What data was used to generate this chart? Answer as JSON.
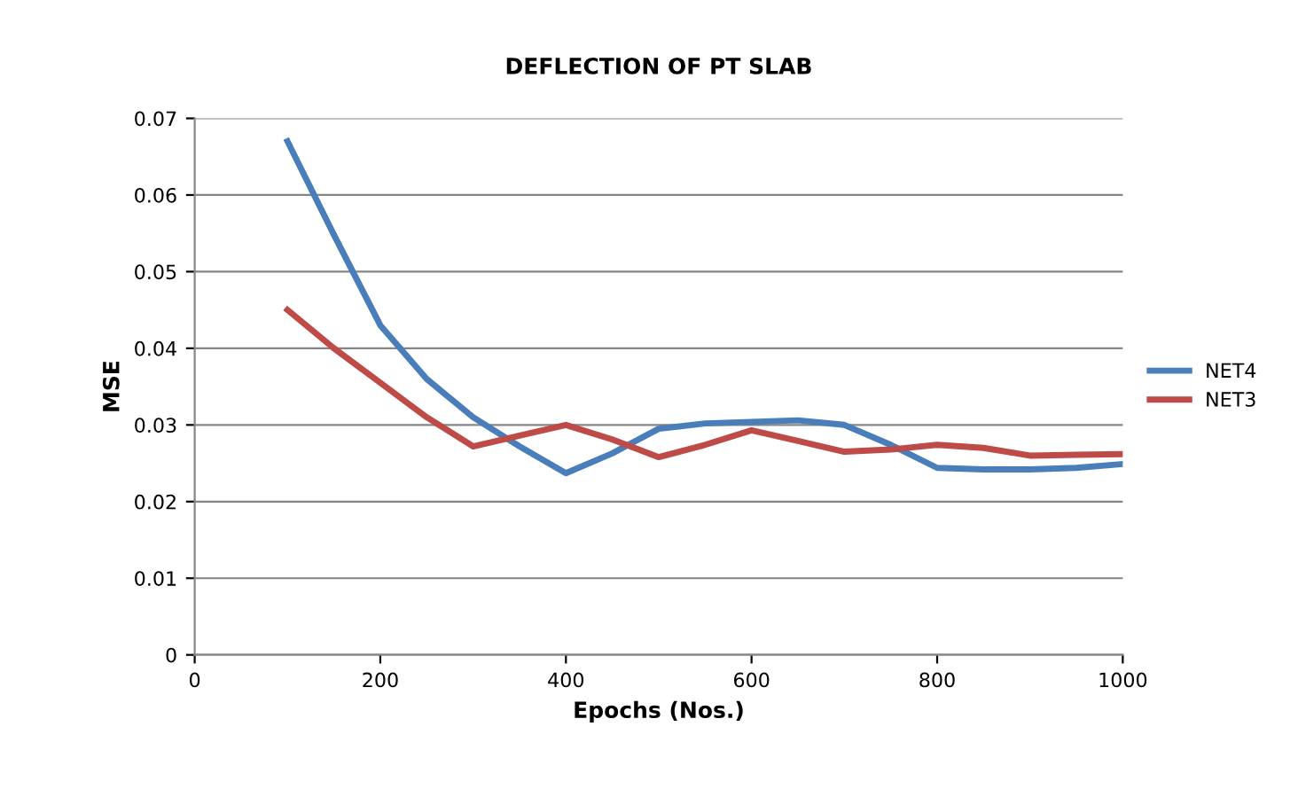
{
  "chart_data": {
    "type": "line",
    "title": "DEFLECTION OF PT SLAB",
    "xlabel": "Epochs (Nos.)",
    "ylabel": "MSE",
    "x": [
      100,
      150,
      200,
      250,
      300,
      350,
      400,
      450,
      500,
      550,
      600,
      650,
      700,
      750,
      800,
      850,
      900,
      950,
      1000
    ],
    "series": [
      {
        "name": "NET4",
        "color": "#4a7ebb",
        "values": [
          0.067,
          0.0548,
          0.043,
          0.036,
          0.031,
          0.0272,
          0.0237,
          0.0263,
          0.0295,
          0.0302,
          0.0304,
          0.0306,
          0.03,
          0.0274,
          0.0244,
          0.0242,
          0.0242,
          0.0244,
          0.0249
        ]
      },
      {
        "name": "NET3",
        "color": "#be4b48",
        "values": [
          0.045,
          0.04,
          0.0355,
          0.031,
          0.0272,
          0.0286,
          0.03,
          0.0281,
          0.0258,
          0.0274,
          0.0293,
          0.0279,
          0.0265,
          0.0268,
          0.0274,
          0.027,
          0.026,
          0.0261,
          0.0262
        ]
      }
    ],
    "xlim": [
      0,
      1000
    ],
    "xticks": [
      0,
      200,
      400,
      600,
      800,
      1000
    ],
    "ylim": [
      0,
      0.07
    ],
    "yticks": [
      0,
      0.01,
      0.02,
      0.03,
      0.04,
      0.05,
      0.06,
      0.07
    ],
    "grid": "y",
    "legend": "right",
    "marker": "none",
    "line_style": "solid"
  }
}
